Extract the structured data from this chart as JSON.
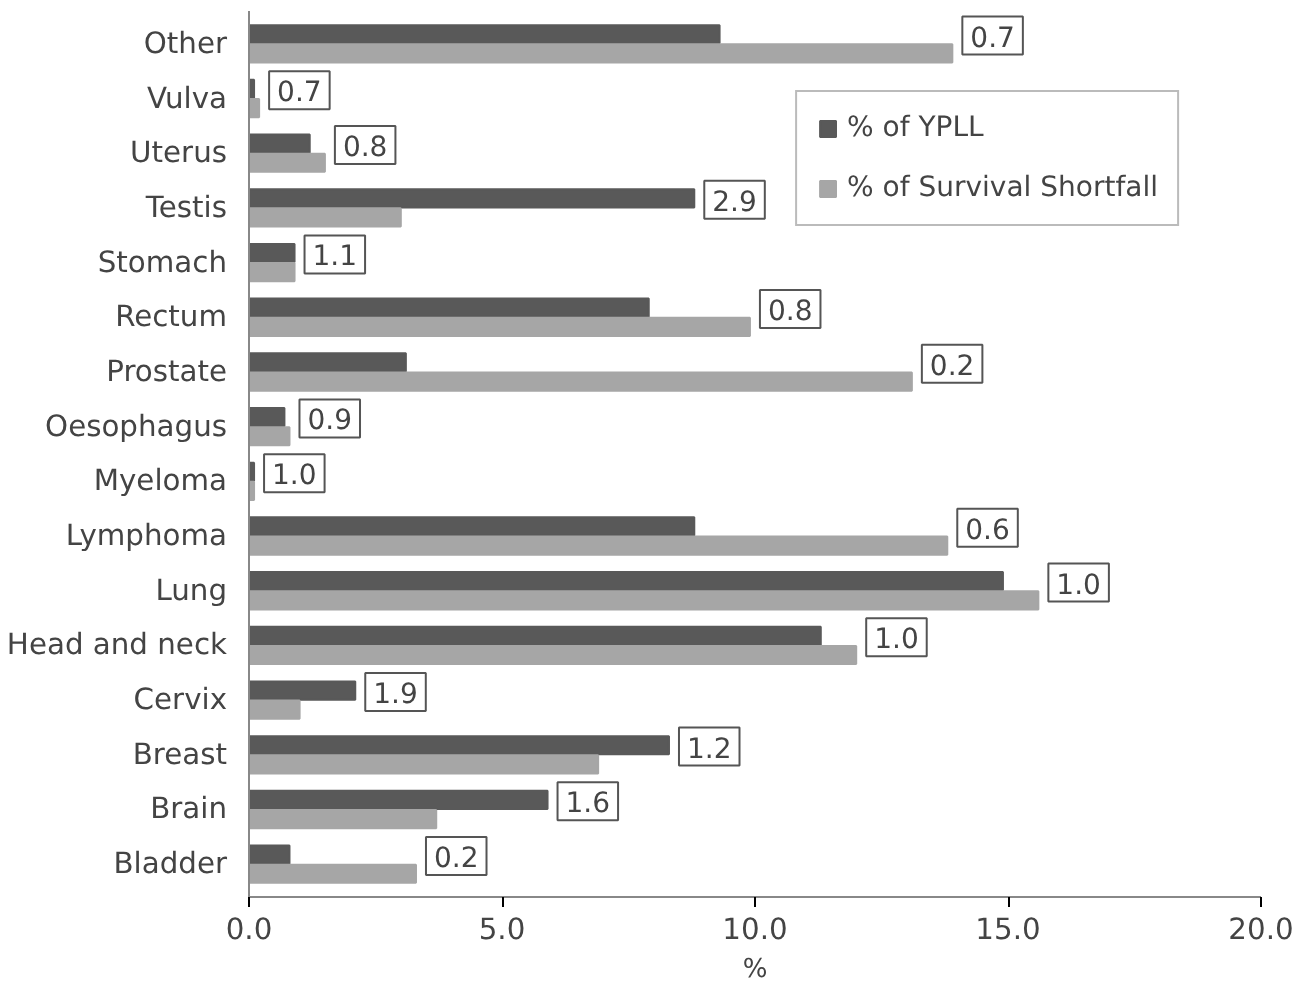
{
  "chart_data": {
    "type": "bar",
    "orientation": "horizontal",
    "xlabel": "%",
    "categories": [
      "Other",
      "Vulva",
      "Uterus",
      "Testis",
      "Stomach",
      "Rectum",
      "Prostate",
      "Oesophagus",
      "Myeloma",
      "Lymphoma",
      "Lung",
      "Head and neck",
      "Cervix",
      "Breast",
      "Brain",
      "Bladder"
    ],
    "series": [
      {
        "name": "% of YPLL",
        "color": "#595959",
        "values": [
          9.3,
          0.1,
          1.2,
          8.8,
          0.9,
          7.9,
          3.1,
          0.7,
          0.1,
          8.8,
          14.9,
          11.3,
          2.1,
          8.3,
          5.9,
          0.8
        ]
      },
      {
        "name": "% of Survival Shortfall",
        "color": "#a6a6a6",
        "values": [
          13.9,
          0.2,
          1.5,
          3.0,
          0.9,
          9.9,
          13.1,
          0.8,
          0.1,
          13.8,
          15.6,
          12.0,
          1.0,
          6.9,
          3.7,
          3.3
        ]
      }
    ],
    "xlim": [
      0,
      20
    ],
    "xticks": [
      {
        "value": 0,
        "label": "0.0"
      },
      {
        "value": 5,
        "label": "5.0"
      },
      {
        "value": 10,
        "label": "10.0"
      },
      {
        "value": 15,
        "label": "15.0"
      },
      {
        "value": 20,
        "label": "20.0"
      }
    ],
    "annotations": [
      {
        "text": "0.7",
        "x": 13.9,
        "y": "Other"
      },
      {
        "text": "0.7",
        "x": 0.2,
        "y": "Vulva"
      },
      {
        "text": "0.8",
        "x": 1.5,
        "y": "Uterus"
      },
      {
        "text": "2.9",
        "x": 8.8,
        "y": "Testis"
      },
      {
        "text": "1.1",
        "x": 0.9,
        "y": "Stomach"
      },
      {
        "text": "0.8",
        "x": 9.9,
        "y": "Rectum"
      },
      {
        "text": "0.2",
        "x": 13.1,
        "y": "Prostate"
      },
      {
        "text": "0.9",
        "x": 0.8,
        "y": "Oesophagus"
      },
      {
        "text": "1.0",
        "x": 0.1,
        "y": "Myeloma"
      },
      {
        "text": "0.6",
        "x": 13.8,
        "y": "Lymphoma"
      },
      {
        "text": "1.0",
        "x": 15.6,
        "y": "Lung"
      },
      {
        "text": "1.0",
        "x": 12.0,
        "y": "Head and neck"
      },
      {
        "text": "1.9",
        "x": 2.1,
        "y": "Cervix"
      },
      {
        "text": "1.2",
        "x": 8.3,
        "y": "Breast"
      },
      {
        "text": "1.6",
        "x": 5.9,
        "y": "Brain"
      },
      {
        "text": "0.2",
        "x": 3.3,
        "y": "Bladder"
      }
    ],
    "legend": "top right",
    "grid": false
  }
}
